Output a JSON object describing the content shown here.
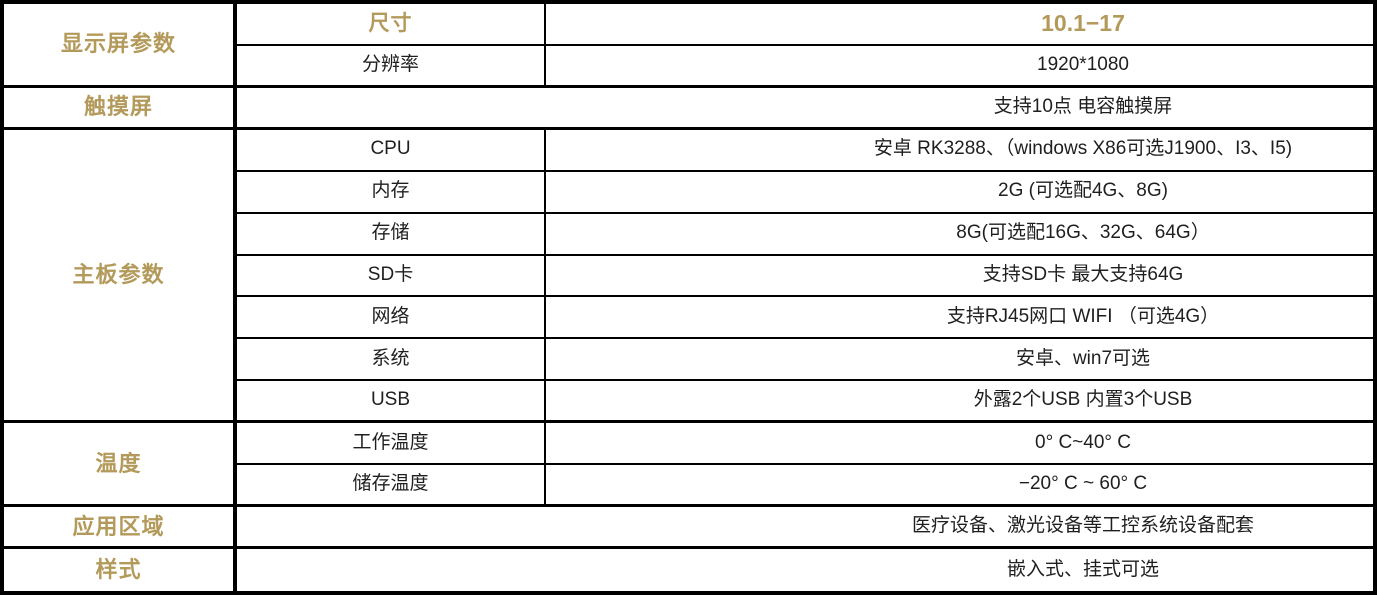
{
  "colors": {
    "accent_gold": "#B39A5B",
    "text": "#1F1F1F",
    "border": "#000000",
    "background": "#FFFFFF"
  },
  "table": {
    "categories": {
      "display": "显示屏参数",
      "touch": "触摸屏",
      "mainboard": "主板参数",
      "temperature": "温度",
      "application": "应用区域",
      "style": "样式"
    },
    "rows": {
      "size": {
        "label": "尺寸",
        "value": "10.1−17"
      },
      "resolution": {
        "label": "分辨率",
        "value": "1920*1080"
      },
      "touch": {
        "value": "支持10点 电容触摸屏"
      },
      "cpu": {
        "label": "CPU",
        "value": "安卓 RK3288、（windows X86可选J1900、I3、I5)"
      },
      "memory": {
        "label": "内存",
        "value": "2G (可选配4G、8G)"
      },
      "storage": {
        "label": "存储",
        "value": "8G(可选配16G、32G、64G）"
      },
      "sd_card": {
        "label": "SD卡",
        "value": "支持SD卡 最大支持64G"
      },
      "network": {
        "label": "网络",
        "value": "支持RJ45网口 WIFI （可选4G）"
      },
      "os": {
        "label": "系统",
        "value": "安卓、win7可选"
      },
      "usb": {
        "label": "USB",
        "value": "外露2个USB 内置3个USB"
      },
      "working_temp": {
        "label": "工作温度",
        "value": "0° C~40° C"
      },
      "storage_temp": {
        "label": "储存温度",
        "value": "−20° C ~ 60° C"
      },
      "application": {
        "value": "医疗设备、激光设备等工控系统设备配套"
      },
      "style": {
        "value": "嵌入式、挂式可选"
      }
    }
  }
}
